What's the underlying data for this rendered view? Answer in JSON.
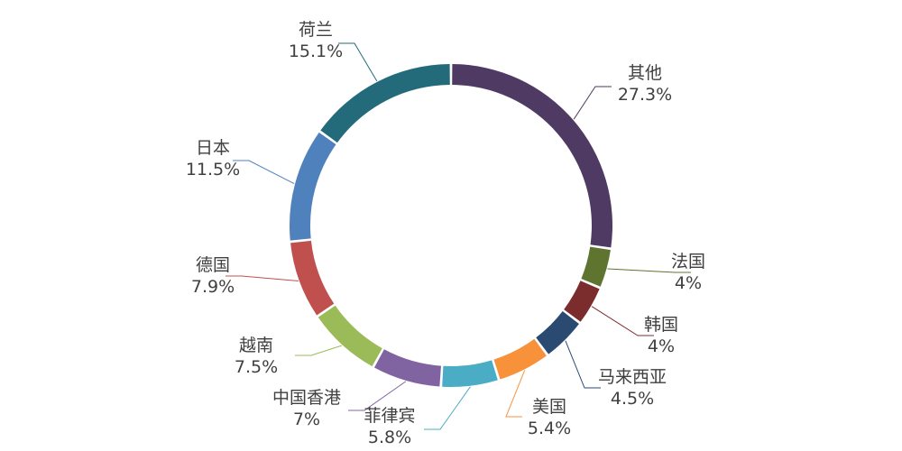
{
  "chart_data": {
    "type": "pie",
    "variant": "donut",
    "legend": "none",
    "unit": "%",
    "slices": [
      {
        "name": "其他",
        "value": 27.3,
        "label": "27.3%",
        "color": "#4e3a62"
      },
      {
        "name": "法国",
        "value": 4,
        "label": "4%",
        "color": "#5f742e"
      },
      {
        "name": "韩国",
        "value": 4,
        "label": "4%",
        "color": "#7b2c2c"
      },
      {
        "name": "马来西亚",
        "value": 4.5,
        "label": "4.5%",
        "color": "#2a4a72"
      },
      {
        "name": "美国",
        "value": 5.4,
        "label": "5.4%",
        "color": "#f7923b"
      },
      {
        "name": "菲律宾",
        "value": 5.8,
        "label": "5.8%",
        "color": "#4bacc6"
      },
      {
        "name": "中国香港",
        "value": 7,
        "label": "7%",
        "color": "#8064a2"
      },
      {
        "name": "越南",
        "value": 7.5,
        "label": "7.5%",
        "color": "#9bbb59"
      },
      {
        "name": "德国",
        "value": 7.9,
        "label": "7.9%",
        "color": "#c0504d"
      },
      {
        "name": "日本",
        "value": 11.5,
        "label": "11.5%",
        "color": "#4f81bd"
      },
      {
        "name": "荷兰",
        "value": 15.1,
        "label": "15.1%",
        "color": "#236b7a"
      }
    ]
  }
}
